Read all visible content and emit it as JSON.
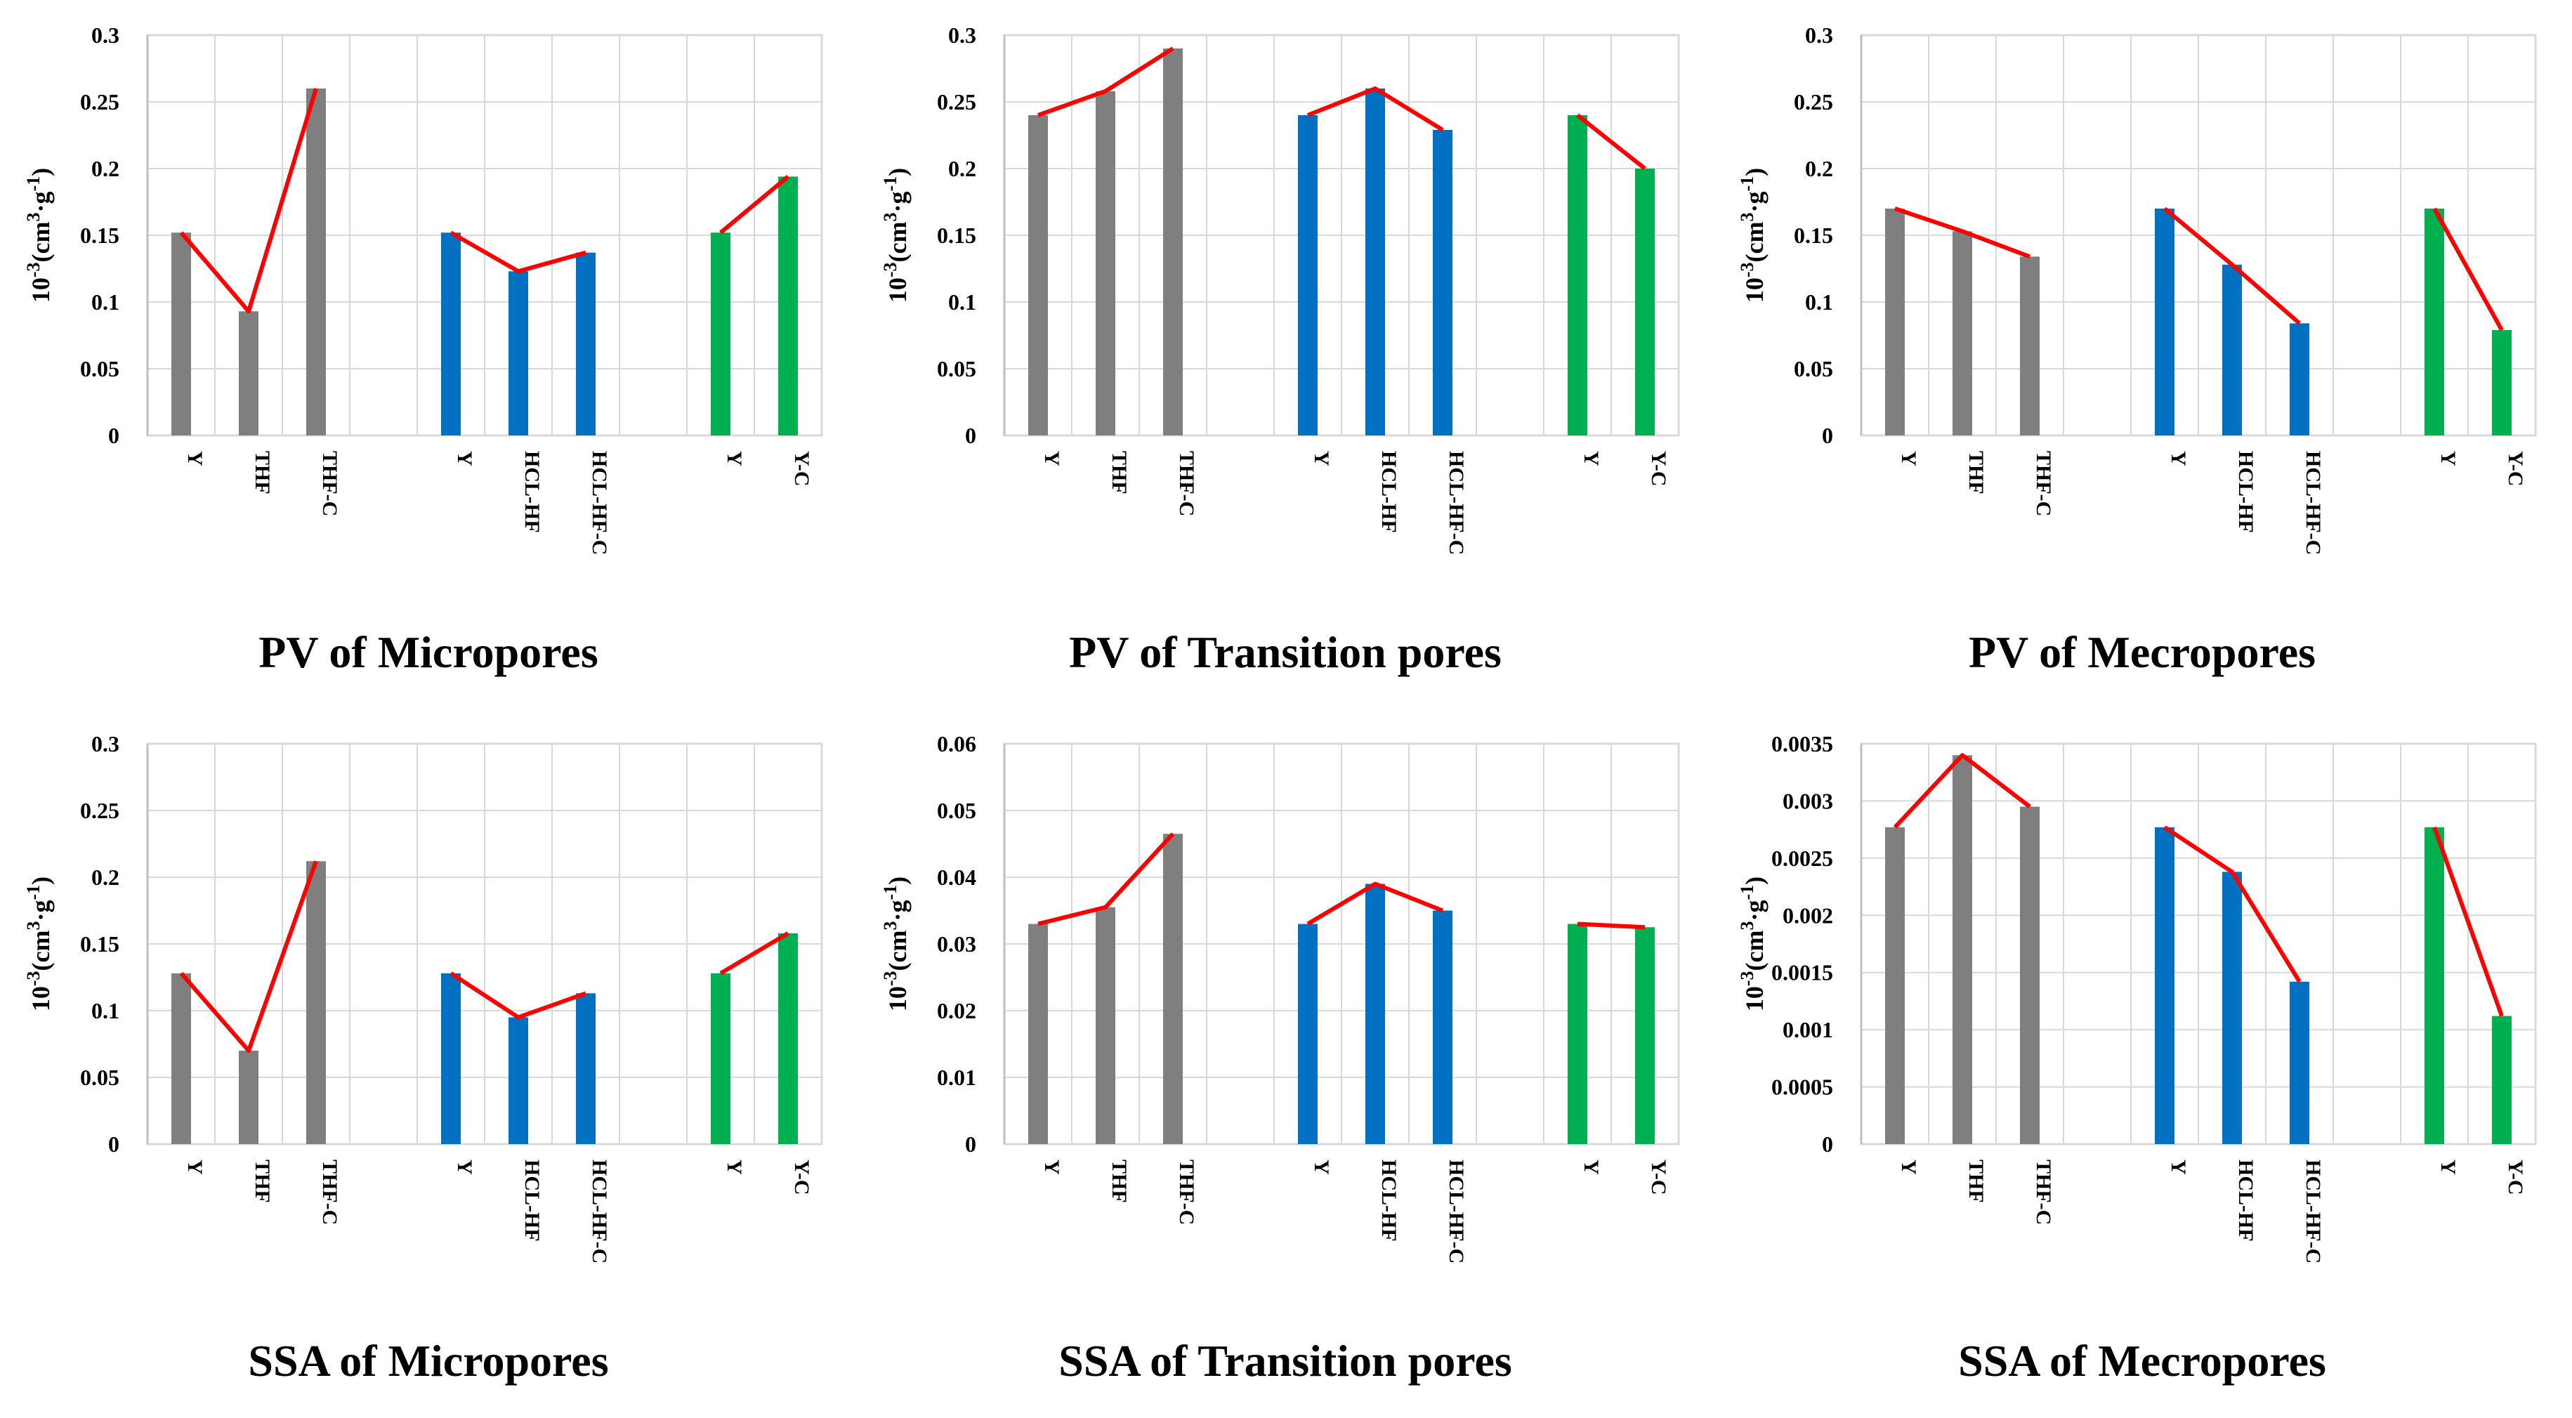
{
  "colors": {
    "gray": "#7f7f7f",
    "blue": "#0070c0",
    "green": "#00b050",
    "line": "#ff0000",
    "grid": "#d9d9d9"
  },
  "ylabel": {
    "prefix": "10",
    "exp": "-3",
    "body": "(cm",
    "cube": "3",
    "mid": "·g",
    "inv": "-1",
    "close": ")"
  },
  "chart_data": [
    {
      "type": "bar",
      "title": "PV of Micropores",
      "ylim": [
        0,
        0.3
      ],
      "yticks": [
        "0",
        "0.05",
        "0.1",
        "0.15",
        "0.2",
        "0.25",
        "0.3"
      ],
      "groups": [
        {
          "color": "gray",
          "categories": [
            "Y",
            "THF",
            "THF-C"
          ],
          "values": [
            0.152,
            0.093,
            0.26
          ]
        },
        {
          "color": "blue",
          "categories": [
            "Y",
            "HCL-HF",
            "HCL-HF-C"
          ],
          "values": [
            0.152,
            0.123,
            0.137
          ]
        },
        {
          "color": "green",
          "categories": [
            "Y",
            "Y-C"
          ],
          "values": [
            0.152,
            0.194
          ]
        }
      ]
    },
    {
      "type": "bar",
      "title": "PV of Transition pores",
      "ylim": [
        0,
        0.3
      ],
      "yticks": [
        "0",
        "0.05",
        "0.1",
        "0.15",
        "0.2",
        "0.25",
        "0.3"
      ],
      "groups": [
        {
          "color": "gray",
          "categories": [
            "Y",
            "THF",
            "THF-C"
          ],
          "values": [
            0.24,
            0.258,
            0.29
          ]
        },
        {
          "color": "blue",
          "categories": [
            "Y",
            "HCL-HF",
            "HCL-HF-C"
          ],
          "values": [
            0.24,
            0.26,
            0.229
          ]
        },
        {
          "color": "green",
          "categories": [
            "Y",
            "Y-C"
          ],
          "values": [
            0.24,
            0.2
          ]
        }
      ]
    },
    {
      "type": "bar",
      "title": "PV of Mecropores",
      "ylim": [
        0,
        0.3
      ],
      "yticks": [
        "0",
        "0.05",
        "0.1",
        "0.15",
        "0.2",
        "0.25",
        "0.3"
      ],
      "groups": [
        {
          "color": "gray",
          "categories": [
            "Y",
            "THF",
            "THF-C"
          ],
          "values": [
            0.17,
            0.153,
            0.134
          ]
        },
        {
          "color": "blue",
          "categories": [
            "Y",
            "HCL-HF",
            "HCL-HF-C"
          ],
          "values": [
            0.17,
            0.128,
            0.084
          ]
        },
        {
          "color": "green",
          "categories": [
            "Y",
            "Y-C"
          ],
          "values": [
            0.17,
            0.079
          ]
        }
      ]
    },
    {
      "type": "bar",
      "title": "SSA of Micropores",
      "ylim": [
        0,
        0.3
      ],
      "yticks": [
        "0",
        "0.05",
        "0.1",
        "0.15",
        "0.2",
        "0.25",
        "0.3"
      ],
      "groups": [
        {
          "color": "gray",
          "categories": [
            "Y",
            "THF",
            "THF-C"
          ],
          "values": [
            0.128,
            0.07,
            0.212
          ]
        },
        {
          "color": "blue",
          "categories": [
            "Y",
            "HCL-HF",
            "HCL-HF-C"
          ],
          "values": [
            0.128,
            0.095,
            0.113
          ]
        },
        {
          "color": "green",
          "categories": [
            "Y",
            "Y-C"
          ],
          "values": [
            0.128,
            0.158
          ]
        }
      ]
    },
    {
      "type": "bar",
      "title": "SSA of Transition pores",
      "ylim": [
        0,
        0.06
      ],
      "yticks": [
        "0",
        "0.01",
        "0.02",
        "0.03",
        "0.04",
        "0.05",
        "0.06"
      ],
      "groups": [
        {
          "color": "gray",
          "categories": [
            "Y",
            "THF",
            "THF-C"
          ],
          "values": [
            0.033,
            0.0355,
            0.0465
          ]
        },
        {
          "color": "blue",
          "categories": [
            "Y",
            "HCL-HF",
            "HCL-HF-C"
          ],
          "values": [
            0.033,
            0.039,
            0.035
          ]
        },
        {
          "color": "green",
          "categories": [
            "Y",
            "Y-C"
          ],
          "values": [
            0.033,
            0.0325
          ]
        }
      ]
    },
    {
      "type": "bar",
      "title": "SSA of Mecropores",
      "ylim": [
        0,
        0.0035
      ],
      "yticks": [
        "0",
        "0.0005",
        "0.001",
        "0.0015",
        "0.002",
        "0.0025",
        "0.003",
        "0.0035"
      ],
      "groups": [
        {
          "color": "gray",
          "categories": [
            "Y",
            "THF",
            "THF-C"
          ],
          "values": [
            0.00277,
            0.0034,
            0.00295
          ]
        },
        {
          "color": "blue",
          "categories": [
            "Y",
            "HCL-HF",
            "HCL-HF-C"
          ],
          "values": [
            0.00277,
            0.00238,
            0.00142
          ]
        },
        {
          "color": "green",
          "categories": [
            "Y",
            "Y-C"
          ],
          "values": [
            0.00277,
            0.00112
          ]
        }
      ]
    }
  ]
}
